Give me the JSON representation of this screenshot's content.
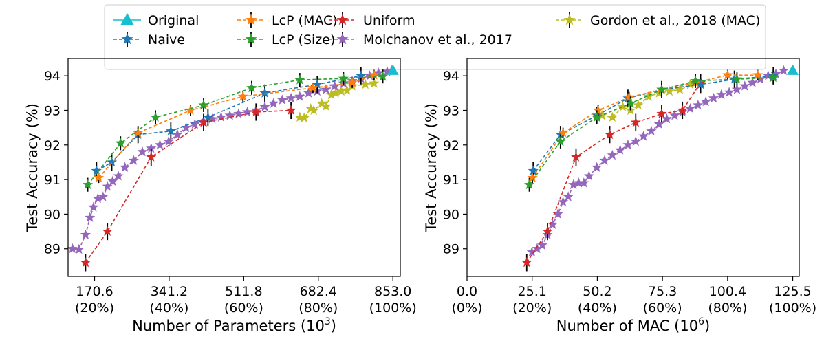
{
  "legend": {
    "entries": [
      {
        "label": "Original",
        "color": "#17becf",
        "marker": "triangle",
        "dashed": false
      },
      {
        "label": "Naive",
        "color": "#1f77b4",
        "marker": "star",
        "dashed": true
      },
      {
        "label": "LcP (MAC)",
        "color": "#ff7f0e",
        "marker": "star",
        "dashed": true
      },
      {
        "label": "LcP (Size)",
        "color": "#2ca02c",
        "marker": "star",
        "dashed": true
      },
      {
        "label": "Uniform",
        "color": "#d62728",
        "marker": "star",
        "dashed": true
      },
      {
        "label": "Molchanov et al., 2017",
        "color": "#9467bd",
        "marker": "star",
        "dashed": true
      },
      {
        "label": "Gordon et al., 2018 (MAC)",
        "color": "#bcbd22",
        "marker": "star",
        "dashed": true
      }
    ]
  },
  "chart_data": [
    {
      "type": "line",
      "xlabel": "Number of Parameters (10",
      "xlabel_sup": "3",
      "xlabel_end": ")",
      "ylabel": "Test Accuracy (%)",
      "xlim": [
        110,
        870
      ],
      "ylim": [
        88.2,
        94.5
      ],
      "yticks": [
        89,
        90,
        91,
        92,
        93,
        94
      ],
      "ytick_labels": [
        "89",
        "90",
        "91",
        "92",
        "93",
        "94"
      ],
      "xticks": [
        170.6,
        341.2,
        511.8,
        682.4,
        853.0
      ],
      "xtick_labels": [
        [
          "170.6",
          "(20%)"
        ],
        [
          "341.2",
          "(40%)"
        ],
        [
          "511.8",
          "(60%)"
        ],
        [
          "682.4",
          "(80%)"
        ],
        [
          "853.0",
          "(100%)"
        ]
      ],
      "grid": false,
      "series": [
        {
          "name": "Gordon et al., 2018 (MAC)",
          "color": "#bcbd22",
          "marker": "star",
          "x": [
            640,
            650,
            665,
            672,
            690,
            700,
            712,
            722,
            735,
            748,
            760,
            790,
            810
          ],
          "y": [
            92.8,
            92.78,
            93.05,
            93.0,
            93.2,
            93.12,
            93.45,
            93.5,
            93.55,
            93.58,
            93.7,
            93.75,
            93.78
          ]
        },
        {
          "name": "Molchanov et al., 2017",
          "color": "#9467bd",
          "marker": "star",
          "x": [
            120,
            135,
            150,
            160,
            168,
            178,
            190,
            200,
            212,
            225,
            240,
            260,
            280,
            300,
            320,
            340,
            360,
            380,
            400,
            420,
            440,
            460,
            480,
            500,
            520,
            540,
            560,
            580,
            600,
            620,
            640,
            660,
            680,
            700,
            720,
            740,
            760,
            780,
            800,
            820,
            840,
            850
          ],
          "y": [
            89.0,
            88.98,
            89.4,
            89.9,
            90.2,
            90.45,
            90.5,
            90.8,
            90.95,
            91.1,
            91.35,
            91.55,
            91.8,
            91.9,
            92.0,
            92.1,
            92.3,
            92.5,
            92.6,
            92.68,
            92.75,
            92.8,
            92.85,
            92.9,
            92.95,
            93.0,
            93.1,
            93.2,
            93.3,
            93.35,
            93.4,
            93.5,
            93.55,
            93.6,
            93.7,
            93.78,
            93.85,
            93.92,
            94.0,
            94.08,
            94.12,
            94.15
          ]
        },
        {
          "name": "Uniform",
          "color": "#d62728",
          "marker": "star",
          "err": 0.25,
          "x": [
            150,
            200,
            300,
            420,
            540,
            620
          ],
          "y": [
            88.6,
            89.5,
            91.65,
            92.65,
            92.95,
            93.0
          ]
        },
        {
          "name": "Naive",
          "color": "#1f77b4",
          "marker": "star",
          "err": 0.25,
          "x": [
            175,
            210,
            270,
            345,
            430,
            560,
            680,
            780
          ],
          "y": [
            91.25,
            91.5,
            92.3,
            92.4,
            92.8,
            93.5,
            93.75,
            94.0
          ]
        },
        {
          "name": "LcP (MAC)",
          "color": "#ff7f0e",
          "marker": "star",
          "err": 0.15,
          "x": [
            180,
            270,
            390,
            510,
            670,
            760,
            810
          ],
          "y": [
            91.05,
            92.35,
            93.0,
            93.4,
            93.65,
            93.8,
            94.02
          ]
        },
        {
          "name": "LcP (Size)",
          "color": "#2ca02c",
          "marker": "star",
          "err": 0.2,
          "x": [
            155,
            230,
            310,
            420,
            530,
            640,
            740,
            830
          ],
          "y": [
            90.85,
            92.05,
            92.8,
            93.15,
            93.65,
            93.88,
            93.92,
            93.98
          ]
        },
        {
          "name": "Original",
          "color": "#17becf",
          "marker": "triangle",
          "x": [
            853.0
          ],
          "y": [
            94.15
          ]
        }
      ]
    },
    {
      "type": "line",
      "xlabel": "Number of MAC (10",
      "xlabel_sup": "6",
      "xlabel_end": ")",
      "ylabel": "Test Accuracy (%)",
      "xlim": [
        0,
        128
      ],
      "ylim": [
        88.2,
        94.5
      ],
      "yticks": [
        89,
        90,
        91,
        92,
        93,
        94
      ],
      "ytick_labels": [
        "89",
        "90",
        "91",
        "92",
        "93",
        "94"
      ],
      "xticks": [
        0.0,
        25.1,
        50.2,
        75.3,
        100.4,
        125.5
      ],
      "xtick_labels": [
        [
          "0.0",
          "(0%)"
        ],
        [
          "25.1",
          "(20%)"
        ],
        [
          "50.2",
          "(40%)"
        ],
        [
          "75.3",
          "(60%)"
        ],
        [
          "100.4",
          "(80%)"
        ],
        [
          "125.5",
          "(100%)"
        ]
      ],
      "grid": false,
      "series": [
        {
          "name": "Gordon et al., 2018 (MAC)",
          "color": "#bcbd22",
          "marker": "star",
          "x": [
            52,
            56,
            60,
            63,
            66,
            70,
            74,
            78,
            82,
            86,
            90
          ],
          "y": [
            92.85,
            92.8,
            93.1,
            93.0,
            93.15,
            93.4,
            93.5,
            93.55,
            93.6,
            93.75,
            93.78
          ]
        },
        {
          "name": "Molchanov et al., 2017",
          "color": "#9467bd",
          "marker": "star",
          "x": [
            25,
            27,
            29,
            31,
            33,
            35,
            37,
            39,
            41,
            43,
            45,
            47,
            50,
            53,
            56,
            59,
            62,
            65,
            68,
            71,
            74,
            77,
            80,
            83,
            86,
            89,
            92,
            95,
            98,
            101,
            104,
            107,
            110,
            113,
            116,
            119,
            122
          ],
          "y": [
            88.9,
            89.0,
            89.1,
            89.4,
            89.7,
            90.0,
            90.35,
            90.5,
            90.85,
            90.9,
            90.9,
            91.1,
            91.35,
            91.55,
            91.7,
            91.85,
            92.0,
            92.1,
            92.25,
            92.4,
            92.6,
            92.75,
            92.85,
            92.95,
            93.05,
            93.15,
            93.25,
            93.35,
            93.45,
            93.52,
            93.6,
            93.7,
            93.8,
            93.9,
            94.0,
            94.05,
            94.15
          ]
        },
        {
          "name": "Uniform",
          "color": "#d62728",
          "marker": "star",
          "err": 0.25,
          "x": [
            23,
            31,
            42,
            55,
            65,
            75,
            83,
            90
          ],
          "y": [
            88.6,
            89.5,
            91.65,
            92.3,
            92.65,
            92.9,
            93.0,
            93.8
          ]
        },
        {
          "name": "Naive",
          "color": "#1f77b4",
          "marker": "star",
          "err": 0.25,
          "x": [
            25.5,
            36,
            50,
            62,
            75,
            90,
            103,
            118
          ],
          "y": [
            91.25,
            92.3,
            92.85,
            93.35,
            93.6,
            93.75,
            93.9,
            94.0
          ]
        },
        {
          "name": "LcP (MAC)",
          "color": "#ff7f0e",
          "marker": "star",
          "err": 0.15,
          "x": [
            25.2,
            37,
            50.5,
            62.5,
            75,
            88,
            100.4,
            112
          ],
          "y": [
            91.05,
            92.35,
            93.0,
            93.38,
            93.6,
            93.8,
            94.02,
            94.02
          ]
        },
        {
          "name": "LcP (Size)",
          "color": "#2ca02c",
          "marker": "star",
          "err": 0.2,
          "x": [
            24,
            36,
            50,
            63,
            75,
            88,
            104,
            118
          ],
          "y": [
            90.85,
            92.1,
            92.8,
            93.2,
            93.6,
            93.85,
            93.9,
            93.95
          ]
        },
        {
          "name": "Original",
          "color": "#17becf",
          "marker": "triangle",
          "x": [
            125.5
          ],
          "y": [
            94.15
          ]
        }
      ]
    }
  ]
}
